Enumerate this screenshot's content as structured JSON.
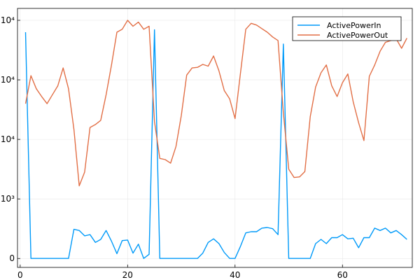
{
  "chart_data": {
    "type": "line",
    "title": "",
    "xlabel": "",
    "ylabel": "",
    "xlim": [
      -0.5,
      73
    ],
    "ylim": [
      -0.15,
      4.2
    ],
    "grid": true,
    "legend_position": "top-right",
    "x_ticks": [
      {
        "value": 0,
        "label": "0"
      },
      {
        "value": 20,
        "label": "20"
      },
      {
        "value": 40,
        "label": "40"
      },
      {
        "value": 60,
        "label": "60"
      }
    ],
    "y_ticks": [
      {
        "value": 0,
        "label": "0"
      },
      {
        "value": 1,
        "label": "10³"
      },
      {
        "value": 2,
        "label": "10⁴"
      },
      {
        "value": 3,
        "label": "10⁴"
      },
      {
        "value": 4,
        "label": "10⁴"
      }
    ],
    "series": [
      {
        "name": "ActivePowerIn",
        "color": "#009AF9",
        "x": [
          1,
          2,
          3,
          4,
          5,
          6,
          7,
          8,
          9,
          10,
          11,
          12,
          13,
          14,
          15,
          16,
          17,
          18,
          19,
          20,
          21,
          22,
          23,
          24,
          25,
          26,
          27,
          28,
          29,
          30,
          31,
          32,
          33,
          34,
          35,
          36,
          37,
          38,
          39,
          40,
          41,
          42,
          43,
          44,
          45,
          46,
          47,
          48,
          49,
          50,
          51,
          52,
          53,
          54,
          55,
          56,
          57,
          58,
          59,
          60,
          61,
          62,
          63,
          64,
          65,
          66,
          67,
          68,
          69,
          70,
          71,
          72
        ],
        "values": [
          3.8,
          0,
          0,
          0,
          0,
          0,
          0,
          0,
          0,
          0.49,
          0.47,
          0.38,
          0.4,
          0.27,
          0.32,
          0.47,
          0.29,
          0.08,
          0.3,
          0.31,
          0.09,
          0.24,
          0,
          0.07,
          3.84,
          0,
          0,
          0,
          0,
          0,
          0,
          0,
          0,
          0.09,
          0.27,
          0.33,
          0.25,
          0.1,
          0,
          0,
          0.2,
          0.43,
          0.45,
          0.45,
          0.51,
          0.52,
          0.5,
          0.4,
          3.6,
          0,
          0,
          0,
          0,
          0,
          0.25,
          0.32,
          0.25,
          0.35,
          0.35,
          0.4,
          0.33,
          0.34,
          0.18,
          0.35,
          0.35,
          0.51,
          0.47,
          0.51,
          0.43,
          0.47,
          0.4,
          0.32
        ]
      },
      {
        "name": "ActivePowerOut",
        "color": "#E26F46",
        "x": [
          1,
          2,
          3,
          4,
          5,
          6,
          7,
          8,
          9,
          10,
          11,
          12,
          13,
          14,
          15,
          16,
          17,
          18,
          19,
          20,
          21,
          22,
          23,
          24,
          25,
          26,
          27,
          28,
          29,
          30,
          31,
          32,
          33,
          34,
          35,
          36,
          37,
          38,
          39,
          40,
          41,
          42,
          43,
          44,
          45,
          46,
          47,
          48,
          49,
          50,
          51,
          52,
          53,
          54,
          55,
          56,
          57,
          58,
          59,
          60,
          61,
          62,
          63,
          64,
          65,
          66,
          67,
          68,
          69,
          70,
          71,
          72
        ],
        "values": [
          2.6,
          3.07,
          2.85,
          2.72,
          2.6,
          2.75,
          2.9,
          3.2,
          2.85,
          2.17,
          1.22,
          1.45,
          2.2,
          2.25,
          2.32,
          2.75,
          3.25,
          3.8,
          3.85,
          4.0,
          3.9,
          3.97,
          3.85,
          3.9,
          2.3,
          1.68,
          1.66,
          1.6,
          1.88,
          2.4,
          3.08,
          3.2,
          3.21,
          3.26,
          3.23,
          3.4,
          3.15,
          2.82,
          2.68,
          2.35,
          3.1,
          3.85,
          3.95,
          3.92,
          3.86,
          3.8,
          3.72,
          3.66,
          2.45,
          1.5,
          1.36,
          1.37,
          1.46,
          2.38,
          2.88,
          3.12,
          3.25,
          2.9,
          2.72,
          2.95,
          3.1,
          2.63,
          2.28,
          1.98,
          3.06,
          3.25,
          3.48,
          3.63,
          3.66,
          3.69,
          3.53,
          3.7
        ]
      }
    ]
  }
}
